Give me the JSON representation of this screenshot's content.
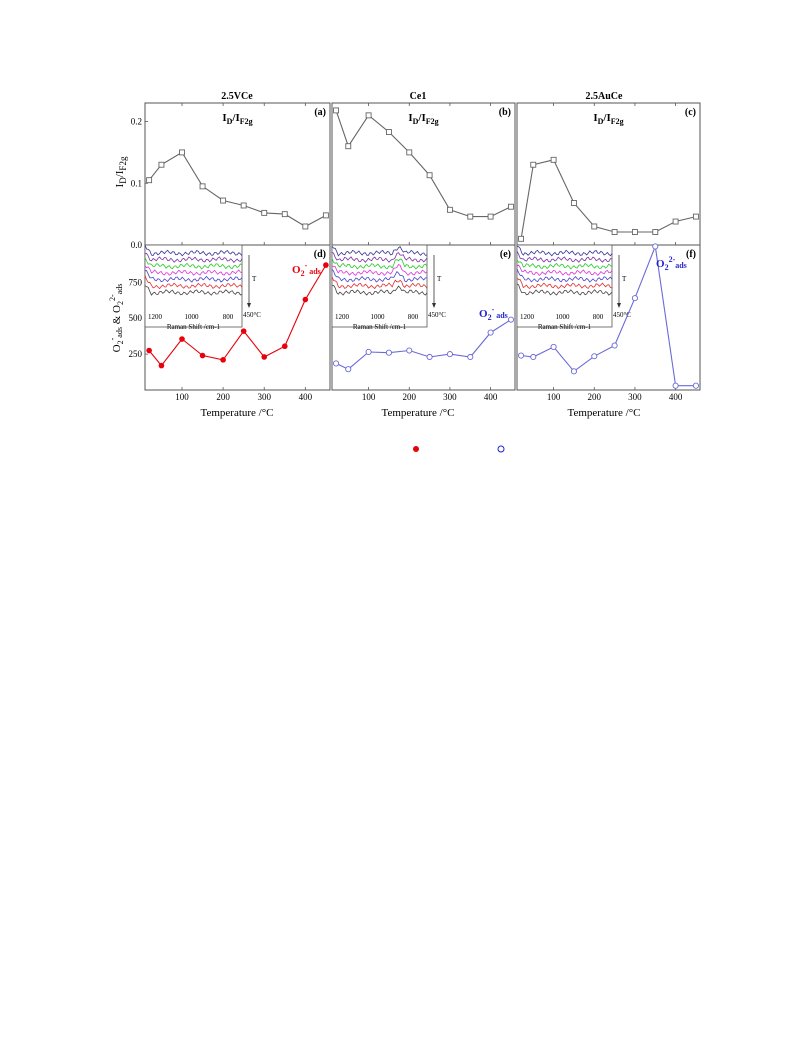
{
  "figure": {
    "x_title": "Temperature /°C",
    "y_title_top": "I_D/I_F2g",
    "y_title_bottom": "O2- ads & O2 2- ads",
    "legend_markers": [
      {
        "marker": "filled-circle",
        "color": "#e8000b"
      },
      {
        "marker": "open-circle",
        "color": "#1f1fd0"
      }
    ]
  },
  "chart_data": [
    {
      "type": "line",
      "panel": "(a)",
      "column_title": "2.5VCe",
      "label": "I_D/I_F2g",
      "x": [
        20,
        50,
        100,
        150,
        200,
        250,
        300,
        350,
        400,
        450
      ],
      "y": [
        0.105,
        0.13,
        0.15,
        0.095,
        0.072,
        0.064,
        0.052,
        0.05,
        0.03,
        0.048
      ],
      "xlim": [
        10,
        460
      ],
      "ylim": [
        0.0,
        0.23
      ],
      "yticks": [
        0.0,
        0.1,
        0.2
      ],
      "yticklabels": [
        "0.0",
        "0.1",
        "0.2"
      ],
      "marker": "open-square",
      "color": "#666666"
    },
    {
      "type": "line",
      "panel": "(b)",
      "column_title": "Ce1",
      "label": "I_D/I_F2g",
      "x": [
        20,
        50,
        100,
        150,
        200,
        250,
        300,
        350,
        400,
        450
      ],
      "y": [
        0.218,
        0.16,
        0.21,
        0.183,
        0.15,
        0.113,
        0.057,
        0.046,
        0.046,
        0.062
      ],
      "xlim": [
        10,
        460
      ],
      "ylim": [
        0.0,
        0.23
      ],
      "marker": "open-square",
      "color": "#666666"
    },
    {
      "type": "line",
      "panel": "(c)",
      "column_title": "2.5AuCe",
      "label": "I_D/I_F2g",
      "x": [
        20,
        50,
        100,
        150,
        200,
        250,
        300,
        350,
        400,
        450
      ],
      "y": [
        0.01,
        0.13,
        0.138,
        0.068,
        0.03,
        0.021,
        0.021,
        0.021,
        0.038,
        0.046
      ],
      "xlim": [
        10,
        460
      ],
      "ylim": [
        0.0,
        0.23
      ],
      "marker": "open-square",
      "color": "#666666"
    },
    {
      "type": "line",
      "panel": "(d)",
      "label": "O2- ads",
      "x": [
        20,
        50,
        100,
        150,
        200,
        250,
        300,
        350,
        400,
        450
      ],
      "y": [
        275,
        170,
        355,
        240,
        210,
        410,
        230,
        305,
        630,
        870
      ],
      "xlim": [
        10,
        460
      ],
      "ylim": [
        0,
        1010
      ],
      "yticks": [
        250,
        500,
        750
      ],
      "yticklabels": [
        "250",
        "500",
        "750"
      ],
      "xticks": [
        100,
        200,
        300,
        400
      ],
      "xticklabels": [
        "100",
        "200",
        "300",
        "400"
      ],
      "marker": "filled-circle",
      "color": "#e8000b",
      "inset": {
        "xlabel": "Raman Shift /cm-1",
        "xticklabels": [
          "1200",
          "1000",
          "800"
        ],
        "arrow_label": "T",
        "temp_label": "450°C"
      }
    },
    {
      "type": "line",
      "panel": "(e)",
      "label": "O2- ads",
      "x": [
        20,
        50,
        100,
        150,
        200,
        250,
        300,
        350,
        400,
        450
      ],
      "y": [
        185,
        145,
        265,
        260,
        275,
        230,
        250,
        230,
        400,
        490
      ],
      "xlim": [
        10,
        460
      ],
      "ylim": [
        0,
        1010
      ],
      "xticks": [
        100,
        200,
        300,
        400
      ],
      "xticklabels": [
        "100",
        "200",
        "300",
        "400"
      ],
      "marker": "open-circle",
      "color": "#6a6ad8",
      "inset": {
        "xlabel": "Raman Shift /cm-1",
        "xticklabels": [
          "1200",
          "1000",
          "800"
        ],
        "arrow_label": "T",
        "temp_label": "450°C"
      }
    },
    {
      "type": "line",
      "panel": "(f)",
      "label": "O2 2- ads",
      "x": [
        20,
        50,
        100,
        150,
        200,
        250,
        300,
        350,
        400,
        450
      ],
      "y": [
        240,
        230,
        300,
        130,
        235,
        310,
        640,
        1000,
        30,
        30
      ],
      "xlim": [
        10,
        460
      ],
      "ylim": [
        0,
        1010
      ],
      "xticks": [
        100,
        200,
        300,
        400
      ],
      "xticklabels": [
        "100",
        "200",
        "300",
        "400"
      ],
      "marker": "open-circle",
      "color": "#6a6ad8",
      "inset": {
        "xlabel": "Raman Shift /cm-1",
        "xticklabels": [
          "1200",
          "1000",
          "800"
        ],
        "arrow_label": "T",
        "temp_label": "450°C"
      }
    }
  ]
}
